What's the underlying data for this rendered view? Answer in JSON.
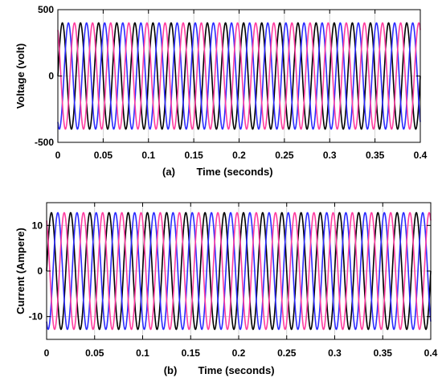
{
  "chart_data": [
    {
      "type": "line",
      "panel_label": "(a)",
      "xlabel": "Time (seconds)",
      "ylabel": "Voltage (volt)",
      "xlim": [
        0,
        0.4
      ],
      "ylim": [
        -500,
        500
      ],
      "x_ticks": [
        0,
        0.05,
        0.1,
        0.15,
        0.2,
        0.25,
        0.3,
        0.35,
        0.4
      ],
      "x_tick_labels": [
        "0",
        "0.05",
        "0.1",
        "0.15",
        "0.2",
        "0.25",
        "0.3",
        "0.35",
        "0.4"
      ],
      "y_ticks": [
        -500,
        0,
        500
      ],
      "y_tick_labels": [
        "-500",
        "0",
        "500"
      ],
      "grid": true,
      "legend": "none",
      "waveform": "sinusoidal",
      "frequency_hz": 50,
      "amplitude": 400,
      "series": [
        {
          "phase_deg": 0,
          "color": "#000000"
        },
        {
          "phase_deg": -120,
          "color": "#2b2bff"
        },
        {
          "phase_deg": 120,
          "color": "#ff3ca0"
        }
      ]
    },
    {
      "type": "line",
      "panel_label": "(b)",
      "xlabel": "Time (seconds)",
      "ylabel": "Current (Ampere)",
      "xlim": [
        0,
        0.4
      ],
      "ylim": [
        -15,
        15
      ],
      "x_ticks": [
        0,
        0.05,
        0.1,
        0.15,
        0.2,
        0.25,
        0.3,
        0.35,
        0.4
      ],
      "x_tick_labels": [
        "0",
        "0.05",
        "0.1",
        "0.15",
        "0.2",
        "0.25",
        "0.3",
        "0.35",
        "0.4"
      ],
      "y_ticks": [
        -10,
        0,
        10
      ],
      "y_tick_labels": [
        "-10",
        "0",
        "10"
      ],
      "grid": true,
      "legend": "none",
      "waveform": "sinusoidal",
      "frequency_hz": 50,
      "amplitude": 12.8,
      "series": [
        {
          "phase_deg": 0,
          "color": "#000000"
        },
        {
          "phase_deg": -120,
          "color": "#2b2bff"
        },
        {
          "phase_deg": 120,
          "color": "#ff3ca0"
        }
      ]
    }
  ]
}
